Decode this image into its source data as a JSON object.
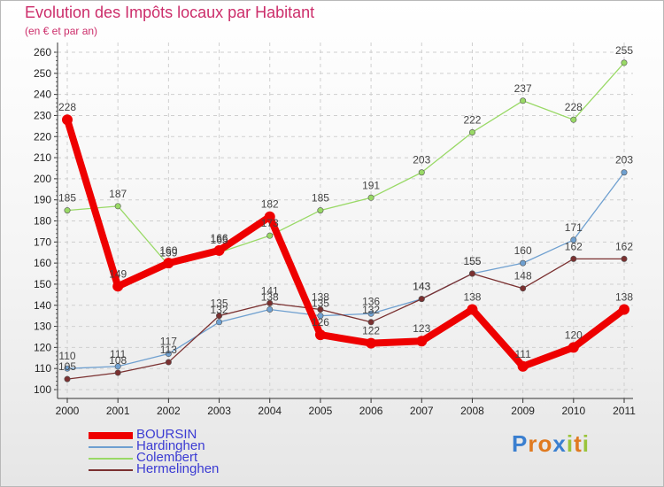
{
  "title": "Evolution des Impôts locaux par Habitant",
  "subtitle": "(en € et par an)",
  "logo": {
    "chars": [
      "P",
      "r",
      "o",
      "x",
      "i",
      "t",
      "i"
    ],
    "colors": [
      "#3a7fd0",
      "#e07a20",
      "#e07a20",
      "#3a7fd0",
      "#9ac43b",
      "#e07a20",
      "#9ac43b"
    ]
  },
  "chart_data": {
    "type": "line",
    "title": "Evolution des Impôts locaux par Habitant",
    "subtitle": "(en € et par an)",
    "xlabel": "",
    "ylabel": "",
    "ylim": [
      100,
      260
    ],
    "yticks": [
      100,
      110,
      120,
      130,
      140,
      150,
      160,
      170,
      180,
      190,
      200,
      210,
      220,
      230,
      240,
      250,
      260
    ],
    "grid": true,
    "legend_position": "bottom-left",
    "categories": [
      "2000",
      "2001",
      "2002",
      "2003",
      "2004",
      "2005",
      "2006",
      "2007",
      "2008",
      "2009",
      "2010",
      "2011"
    ],
    "series": [
      {
        "name": "Colembert",
        "color": "#99d966",
        "values": [
          185,
          187,
          159,
          165,
          173,
          185,
          191,
          203,
          222,
          237,
          228,
          255
        ]
      },
      {
        "name": "Hardinghen",
        "color": "#6fa0d0",
        "values": [
          110,
          111,
          117,
          132,
          138,
          135,
          136,
          143,
          155,
          160,
          171,
          203
        ]
      },
      {
        "name": "Hermelinghen",
        "color": "#7a3030",
        "values": [
          105,
          108,
          113,
          135,
          141,
          138,
          132,
          143,
          155,
          148,
          162,
          162
        ]
      },
      {
        "name": "BOURSIN",
        "color": "#ee0000",
        "values": [
          228,
          149,
          160,
          166,
          182,
          126,
          122,
          123,
          138,
          111,
          120,
          138
        ]
      }
    ],
    "legend": [
      "BOURSIN",
      "Hardinghen",
      "Colembert",
      "Hermelinghen"
    ]
  }
}
